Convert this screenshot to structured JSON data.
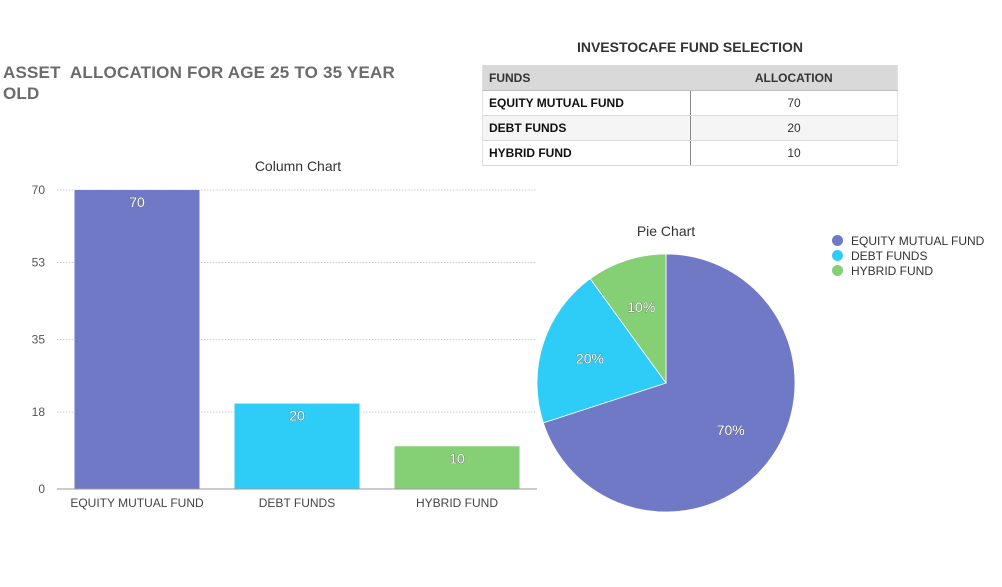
{
  "page": {
    "title": "ASSET  ALLOCATION FOR AGE 25 TO 35 YEAR OLD"
  },
  "table": {
    "title": "INVESTOCAFE FUND SELECTION",
    "headers": [
      "FUNDS",
      "ALLOCATION"
    ],
    "rows": [
      {
        "fund": "EQUITY MUTUAL FUND",
        "allocation": "70"
      },
      {
        "fund": "DEBT FUNDS",
        "allocation": "20"
      },
      {
        "fund": "HYBRID FUND",
        "allocation": "10"
      }
    ]
  },
  "colors": {
    "equity": "#7079c6",
    "debt": "#2ecdf7",
    "hybrid": "#85cf75"
  },
  "chart_data": [
    {
      "type": "bar",
      "title": "Column Chart",
      "categories": [
        "EQUITY MUTUAL FUND",
        "DEBT FUNDS",
        "HYBRID FUND"
      ],
      "values": [
        70,
        20,
        10
      ],
      "data_labels": [
        "70",
        "20",
        "10"
      ],
      "yticks": [
        "0",
        "18",
        "35",
        "53",
        "70"
      ],
      "ylim": [
        0,
        70
      ],
      "xlabel": "",
      "ylabel": "",
      "grid": true
    },
    {
      "type": "pie",
      "title": "Pie Chart",
      "categories": [
        "EQUITY MUTUAL FUND",
        "DEBT FUNDS",
        "HYBRID FUND"
      ],
      "values": [
        70,
        20,
        10
      ],
      "data_labels": [
        "70%",
        "20%",
        "10%"
      ],
      "legend": "right"
    }
  ]
}
